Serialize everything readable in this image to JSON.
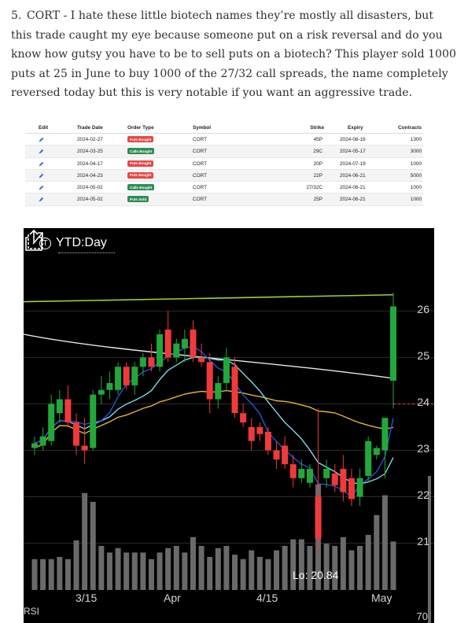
{
  "paragraph": {
    "number": "5.",
    "text": "CORT - I hate these little biotech names they’re mostly all disasters, but this trade caught my eye because someone put on a risk reversal and do you know how gutsy you have to be to sell puts on a biotech? This player sold 1000 puts at 25 in June to buy 1000 of the 27/32 call spreads, the name completely reversed today but this is very notable if you want an aggressive trade."
  },
  "table": {
    "headers": {
      "edit": "Edit",
      "date": "Trade Date",
      "type": "Order Type",
      "symbol": "Symbol",
      "strike": "Strike",
      "expiry": "Expiry",
      "contracts": "Contracts"
    },
    "rows": [
      {
        "date": "2024-02-27",
        "type": "Puts Bought",
        "type_color": "#e84545",
        "symbol": "CORT",
        "strike": "45P",
        "expiry": "2024-08-16",
        "contracts": "1300"
      },
      {
        "date": "2024-03-25",
        "type": "Calls Bought",
        "type_color": "#2e8b57",
        "symbol": "CORT",
        "strike": "29C",
        "expiry": "2024-05-17",
        "contracts": "3000"
      },
      {
        "date": "2024-04-17",
        "type": "Puts Bought",
        "type_color": "#e84545",
        "symbol": "CORT",
        "strike": "20P",
        "expiry": "2024-07-19",
        "contracts": "1000"
      },
      {
        "date": "2024-04-23",
        "type": "Puts Bought",
        "type_color": "#e84545",
        "symbol": "CORT",
        "strike": "22P",
        "expiry": "2024-06-21",
        "contracts": "5000"
      },
      {
        "date": "2024-05-02",
        "type": "Calls Bought",
        "type_color": "#2e8b57",
        "symbol": "CORT",
        "strike": "27/32C",
        "expiry": "2024-06-21",
        "contracts": "1000"
      },
      {
        "date": "2024-05-02",
        "type": "Puts Sold",
        "type_color": "#2e8b57",
        "symbol": "CORT",
        "strike": "25P",
        "expiry": "2024-06-21",
        "contracts": "1000"
      }
    ]
  },
  "chart": {
    "title": "YTD:Day",
    "title_icon": "T",
    "low_label": "Lo: 20.84",
    "rsi_label": "RSI",
    "rsi_level": "70",
    "icons": [
      "share-icon",
      "expand-icon"
    ],
    "colors": {
      "up": "#22a83a",
      "down": "#f03a3a",
      "ma_fast": "#2b4fd8",
      "ma_mid": "#7fd8e8",
      "ma_slow": "#e0b53a",
      "ma_long": "#9ad23a",
      "ma_200": "#e6e6e6",
      "volume": "#6a6a6a"
    }
  },
  "chart_data": {
    "type": "candlestick",
    "y_ticks": [
      "26",
      "25",
      "24",
      "23",
      "22",
      "21"
    ],
    "x_ticks": [
      "3/15",
      "Apr",
      "4/15",
      "May"
    ],
    "ylim": [
      20.5,
      26.6
    ],
    "candles": [
      {
        "o": 23.05,
        "h": 23.3,
        "l": 22.9,
        "c": 23.15
      },
      {
        "o": 23.1,
        "h": 23.5,
        "l": 23.0,
        "c": 23.3
      },
      {
        "o": 23.2,
        "h": 24.2,
        "l": 23.1,
        "c": 24.0
      },
      {
        "o": 23.8,
        "h": 24.3,
        "l": 23.6,
        "c": 24.1
      },
      {
        "o": 24.1,
        "h": 24.4,
        "l": 23.5,
        "c": 23.6
      },
      {
        "o": 23.6,
        "h": 23.8,
        "l": 22.9,
        "c": 23.1
      },
      {
        "o": 23.1,
        "h": 23.7,
        "l": 22.7,
        "c": 23.0
      },
      {
        "o": 23.05,
        "h": 24.3,
        "l": 23.0,
        "c": 24.2
      },
      {
        "o": 24.2,
        "h": 24.6,
        "l": 24.0,
        "c": 24.3
      },
      {
        "o": 24.3,
        "h": 24.7,
        "l": 24.1,
        "c": 24.45
      },
      {
        "o": 24.3,
        "h": 24.9,
        "l": 24.2,
        "c": 24.8
      },
      {
        "o": 24.8,
        "h": 24.9,
        "l": 24.3,
        "c": 24.4
      },
      {
        "o": 24.4,
        "h": 24.9,
        "l": 24.2,
        "c": 24.8
      },
      {
        "o": 24.8,
        "h": 25.1,
        "l": 24.6,
        "c": 25.0
      },
      {
        "o": 25.0,
        "h": 25.3,
        "l": 24.7,
        "c": 24.8
      },
      {
        "o": 24.8,
        "h": 25.6,
        "l": 24.7,
        "c": 25.5
      },
      {
        "o": 25.6,
        "h": 26.0,
        "l": 24.9,
        "c": 25.0
      },
      {
        "o": 25.0,
        "h": 25.4,
        "l": 24.9,
        "c": 25.3
      },
      {
        "o": 25.2,
        "h": 25.6,
        "l": 24.9,
        "c": 25.4
      },
      {
        "o": 25.6,
        "h": 25.8,
        "l": 24.9,
        "c": 25.0
      },
      {
        "o": 25.0,
        "h": 25.3,
        "l": 24.8,
        "c": 24.9
      },
      {
        "o": 24.9,
        "h": 25.1,
        "l": 23.8,
        "c": 24.1
      },
      {
        "o": 24.1,
        "h": 24.6,
        "l": 23.9,
        "c": 24.45
      },
      {
        "o": 24.45,
        "h": 25.2,
        "l": 24.3,
        "c": 25.0
      },
      {
        "o": 24.8,
        "h": 25.0,
        "l": 23.7,
        "c": 23.8
      },
      {
        "o": 23.8,
        "h": 24.0,
        "l": 23.5,
        "c": 23.6
      },
      {
        "o": 23.5,
        "h": 23.7,
        "l": 23.0,
        "c": 23.2
      },
      {
        "o": 23.5,
        "h": 23.6,
        "l": 23.2,
        "c": 23.35
      },
      {
        "o": 23.4,
        "h": 23.5,
        "l": 22.9,
        "c": 23.0
      },
      {
        "o": 23.0,
        "h": 23.2,
        "l": 22.6,
        "c": 22.8
      },
      {
        "o": 23.1,
        "h": 23.3,
        "l": 22.6,
        "c": 22.7
      },
      {
        "o": 22.7,
        "h": 22.9,
        "l": 22.2,
        "c": 22.4
      },
      {
        "o": 22.4,
        "h": 22.8,
        "l": 22.3,
        "c": 22.6
      },
      {
        "o": 22.3,
        "h": 22.7,
        "l": 22.2,
        "c": 22.6
      },
      {
        "o": 22.0,
        "h": 23.9,
        "l": 20.84,
        "c": 21.1
      },
      {
        "o": 22.4,
        "h": 22.8,
        "l": 22.2,
        "c": 22.6
      },
      {
        "o": 22.5,
        "h": 22.7,
        "l": 22.1,
        "c": 22.25
      },
      {
        "o": 22.6,
        "h": 22.9,
        "l": 21.9,
        "c": 22.1
      },
      {
        "o": 22.4,
        "h": 22.6,
        "l": 21.8,
        "c": 21.95
      },
      {
        "o": 22.0,
        "h": 22.6,
        "l": 21.8,
        "c": 22.4
      },
      {
        "o": 22.45,
        "h": 23.3,
        "l": 22.3,
        "c": 23.2
      },
      {
        "o": 22.9,
        "h": 23.1,
        "l": 22.8,
        "c": 23.05
      },
      {
        "o": 23.0,
        "h": 23.7,
        "l": 22.4,
        "c": 23.7
      },
      {
        "o": 24.5,
        "h": 26.4,
        "l": 23.9,
        "c": 26.1
      }
    ],
    "volume_levels": [
      0.28,
      0.28,
      0.28,
      0.3,
      0.28,
      0.45,
      0.88,
      0.8,
      0.4,
      0.34,
      0.38,
      0.34,
      0.34,
      0.34,
      0.28,
      0.34,
      0.38,
      0.4,
      0.34,
      0.48,
      0.4,
      0.3,
      0.38,
      0.4,
      0.32,
      0.28,
      0.36,
      0.3,
      0.28,
      0.36,
      0.4,
      0.46,
      0.46,
      0.4,
      0.96,
      0.42,
      0.4,
      0.48,
      0.36,
      0.4,
      0.5,
      0.68,
      0.86,
      0.44
    ],
    "last_price_line": 24.0
  }
}
